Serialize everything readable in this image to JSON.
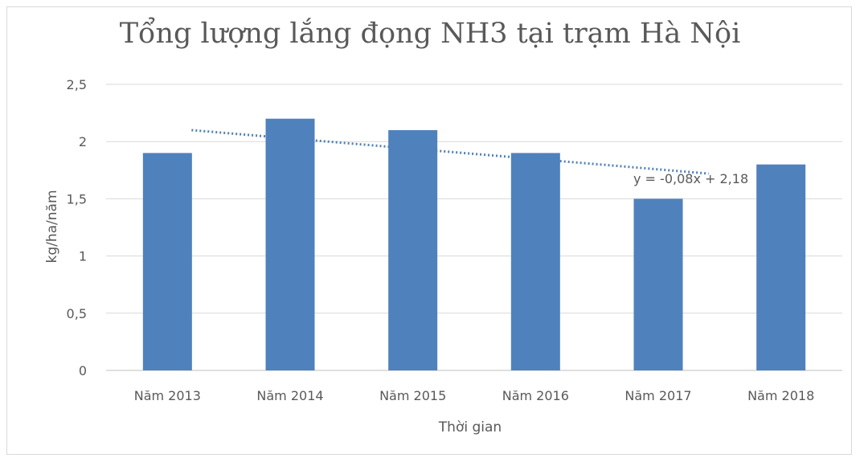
{
  "chart_data": {
    "type": "bar",
    "title": "Tổng lượng lắng đọng NH3 tại trạm Hà Nội",
    "xlabel": "Thời gian",
    "ylabel": "kg/ha/năm",
    "categories": [
      "Năm 2013",
      "Năm 2014",
      "Năm 2015",
      "Năm 2016",
      "Năm 2017",
      "Năm 2018"
    ],
    "values": [
      1.9,
      2.2,
      2.1,
      1.9,
      1.5,
      1.8
    ],
    "ylim": [
      0,
      2.5
    ],
    "yticks": [
      "0",
      "0,5",
      "1",
      "1,5",
      "2",
      "2,5"
    ],
    "grid": true,
    "legend": "none",
    "bar_color": "#4f81bd",
    "trendline": {
      "type": "linear",
      "slope": -0.08,
      "intercept": 2.18,
      "equation_label": "y = -0,08x + 2,18",
      "color": "#4f81bd",
      "style": "dotted"
    }
  }
}
